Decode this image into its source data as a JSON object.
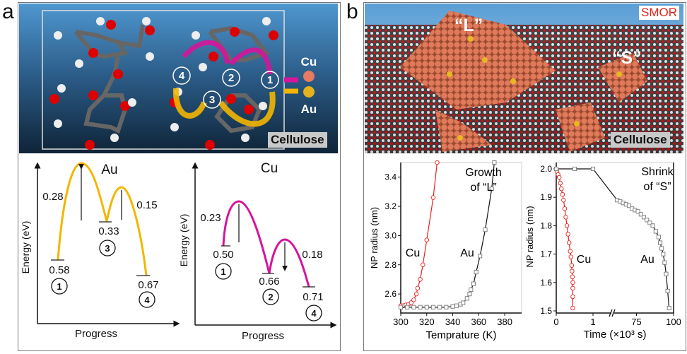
{
  "panel_a": {
    "label": "a",
    "molecule": {
      "cellulose_label": "Cellulose",
      "legend_cu": "Cu",
      "legend_au": "Au",
      "sites": [
        "1",
        "2",
        "3",
        "4"
      ]
    },
    "au_diagram": {
      "title": "Au",
      "ylabel": "Energy (eV)",
      "xlabel": "Progress",
      "barriers": [
        "0.28",
        "0.15"
      ],
      "levels": [
        "0.58",
        "0.33",
        "0.67"
      ],
      "sites": [
        "1",
        "3",
        "4"
      ]
    },
    "cu_diagram": {
      "title": "Cu",
      "ylabel": "Energy (eV)",
      "xlabel": "Progress",
      "barriers": [
        "0.23",
        "0.18"
      ],
      "levels": [
        "0.50",
        "0.66",
        "0.71"
      ],
      "sites": [
        "1",
        "2",
        "4"
      ]
    }
  },
  "panel_b": {
    "label": "b",
    "image": {
      "method_label": "SMOR",
      "large_label": "“L”",
      "small_label": "“S”",
      "cellulose_label": "Cellulose"
    }
  },
  "colors": {
    "au": "#f2b600",
    "cu": "#d6159a",
    "cu_series": "#e8231f",
    "au_series": "#111111"
  },
  "chart_data": [
    {
      "type": "scatter",
      "annotation": "Growth of “L”",
      "annotation_lines": [
        "Growth",
        "of “L”"
      ],
      "xlabel": "Temprature (K)",
      "ylabel": "NP radius (nm)",
      "xlim": [
        300,
        393
      ],
      "ylim": [
        2.47,
        3.5
      ],
      "xticks": [
        "300",
        "320",
        "340",
        "360",
        "380"
      ],
      "yticks": [
        "2.6",
        "2.8",
        "3.0",
        "3.2",
        "3.4"
      ],
      "series": [
        {
          "name": "Cu",
          "marker": "circle",
          "x": [
            300,
            302,
            304,
            306,
            308,
            310,
            312,
            313,
            315,
            317,
            320,
            325,
            328
          ],
          "y": [
            2.52,
            2.52,
            2.525,
            2.53,
            2.54,
            2.56,
            2.6,
            2.64,
            2.7,
            2.8,
            2.97,
            3.26,
            3.5
          ]
        },
        {
          "name": "Au",
          "marker": "square",
          "x": [
            300,
            305,
            310,
            315,
            320,
            325,
            330,
            335,
            340,
            343,
            346,
            348,
            351,
            353,
            354,
            356,
            358,
            361,
            365,
            370,
            372
          ],
          "y": [
            2.51,
            2.51,
            2.51,
            2.51,
            2.51,
            2.51,
            2.51,
            2.51,
            2.515,
            2.52,
            2.53,
            2.54,
            2.57,
            2.6,
            2.63,
            2.67,
            2.75,
            2.86,
            3.04,
            3.32,
            3.5
          ]
        }
      ]
    },
    {
      "type": "scatter",
      "annotation_lines": [
        "Shrink",
        "of “S”"
      ],
      "xlabel": "Time (×10³ s)",
      "ylabel": "NP radius (nm)",
      "x_break": true,
      "xlim_left": [
        0,
        1.5
      ],
      "xlim_right": [
        60,
        100
      ],
      "ylim": [
        1.5,
        2.0
      ],
      "xticks": [
        "0",
        "1",
        "75",
        "100"
      ],
      "yticks": [
        "1.5",
        "1.6",
        "1.7",
        "1.8",
        "1.9",
        "2.0"
      ],
      "series": [
        {
          "name": "Cu",
          "marker": "circle",
          "x": [
            0,
            0.02,
            0.05,
            0.08,
            0.11,
            0.14,
            0.17,
            0.2,
            0.23,
            0.26,
            0.29,
            0.32,
            0.35,
            0.38,
            0.4,
            0.42,
            0.43,
            0.44,
            0.45,
            0.45,
            0.45,
            0.45
          ],
          "y": [
            2.0,
            1.99,
            1.98,
            1.97,
            1.95,
            1.93,
            1.91,
            1.89,
            1.86,
            1.83,
            1.8,
            1.77,
            1.74,
            1.71,
            1.69,
            1.66,
            1.64,
            1.62,
            1.6,
            1.58,
            1.55,
            1.51
          ]
        },
        {
          "name": "Au",
          "marker": "square",
          "x": [
            0,
            0.5,
            1.0,
            62,
            64,
            66,
            68,
            70,
            72,
            74,
            76,
            78,
            80,
            82,
            84,
            86,
            88,
            90,
            91,
            92,
            93,
            94,
            95,
            96,
            97
          ],
          "y": [
            2.0,
            2.0,
            2.0,
            1.89,
            1.885,
            1.88,
            1.875,
            1.87,
            1.86,
            1.855,
            1.85,
            1.84,
            1.83,
            1.82,
            1.81,
            1.8,
            1.78,
            1.76,
            1.74,
            1.72,
            1.7,
            1.67,
            1.63,
            1.57,
            1.51
          ]
        }
      ]
    }
  ]
}
